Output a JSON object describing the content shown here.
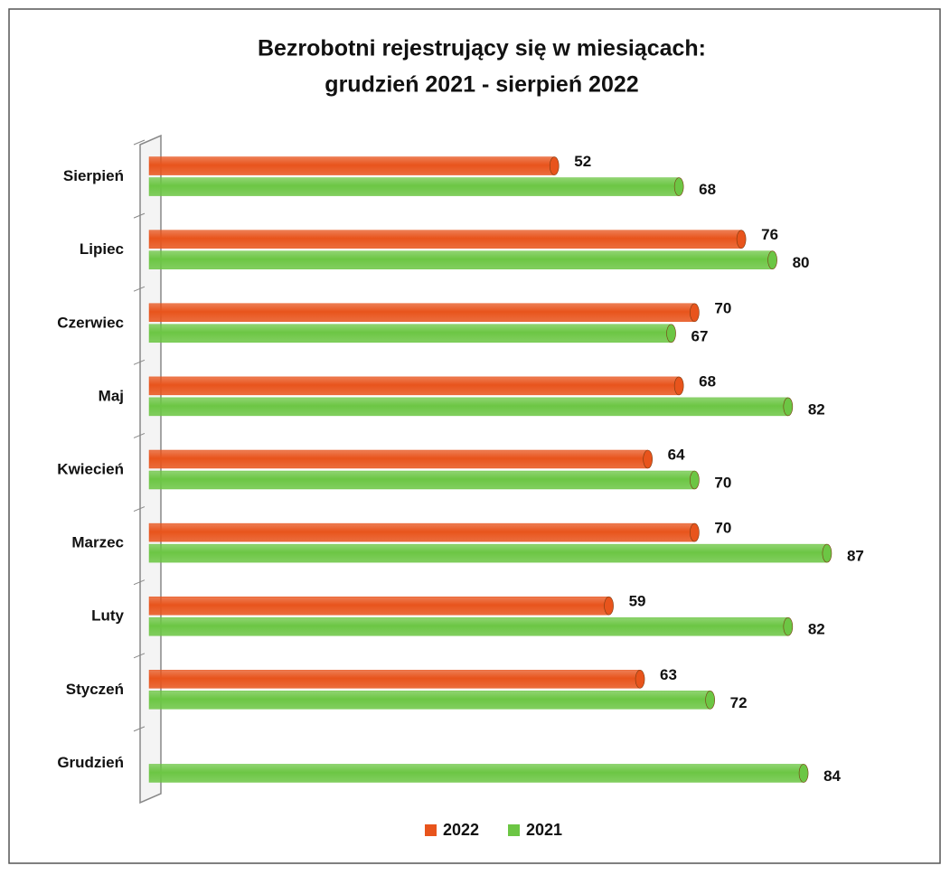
{
  "chart_data": {
    "type": "bar",
    "orientation": "horizontal",
    "title": "Bezrobotni rejestrujący się w miesiącach:",
    "subtitle": "grudzień 2021 - sierpień 2022",
    "categories": [
      "Sierpień",
      "Lipiec",
      "Czerwiec",
      "Maj",
      "Kwiecień",
      "Marzec",
      "Luty",
      "Styczeń",
      "Grudzień"
    ],
    "series": [
      {
        "name": "2022",
        "color": "#e8541c",
        "values": [
          52,
          76,
          70,
          68,
          64,
          70,
          59,
          63,
          null
        ]
      },
      {
        "name": "2021",
        "color": "#6cc644",
        "values": [
          68,
          80,
          67,
          82,
          70,
          87,
          82,
          72,
          84
        ]
      }
    ],
    "xlim": [
      0,
      100
    ],
    "legend": "bottom"
  }
}
